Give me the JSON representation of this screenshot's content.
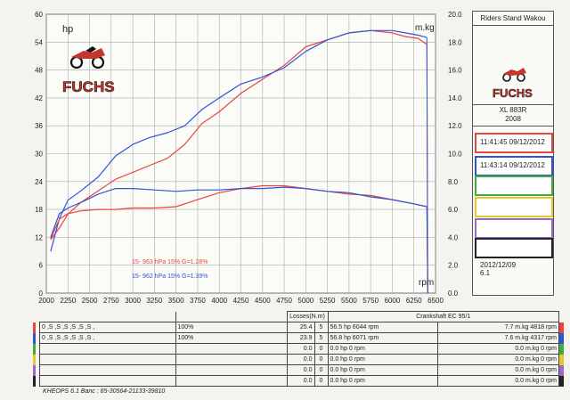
{
  "chart_data": {
    "type": "line",
    "title": "",
    "xlabel": "rpm",
    "ylabel": "hp",
    "y2label": "m.kg",
    "xlim": [
      2000,
      6500
    ],
    "ylim": [
      0,
      60
    ],
    "y2lim": [
      0.0,
      20.0
    ],
    "grid": true,
    "x_ticks": [
      2000,
      2250,
      2500,
      2750,
      3000,
      3250,
      3500,
      3750,
      4000,
      4250,
      4500,
      4750,
      5000,
      5250,
      5500,
      5750,
      6000,
      6250,
      6500
    ],
    "y_ticks": [
      0,
      6,
      12,
      18,
      24,
      30,
      36,
      42,
      48,
      54,
      60
    ],
    "y2_ticks": [
      "0.0",
      "2.0",
      "4.0",
      "6.0",
      "8.0",
      "10.0",
      "12.0",
      "14.0",
      "16.0",
      "18.0",
      "20.0"
    ],
    "annotations": [
      {
        "text": "15-  963 hPa  15%     G=1.28%",
        "color": "#e8453c"
      },
      {
        "text": "15-  962 hPa  15%     G=1.39%",
        "color": "#2f55d4"
      }
    ],
    "series": [
      {
        "name": "11:41:45  09/12/2012",
        "kind": "power",
        "axis": "left",
        "color": "#e8453c",
        "x": [
          2050,
          2150,
          2250,
          2400,
          2600,
          2800,
          3000,
          3200,
          3400,
          3600,
          3800,
          4000,
          4250,
          4500,
          4750,
          5000,
          5250,
          5500,
          5750,
          6000,
          6150,
          6300,
          6400
        ],
        "y": [
          11.5,
          14,
          17,
          19.5,
          22,
          24.5,
          26,
          27.5,
          29,
          32,
          36.5,
          39,
          43,
          46,
          49,
          53,
          54.5,
          56,
          56.5,
          56,
          55.2,
          54.8,
          53.5
        ]
      },
      {
        "name": "11:43:14  09/12/2012",
        "kind": "power",
        "axis": "left",
        "color": "#2f55d4",
        "x": [
          2050,
          2150,
          2250,
          2400,
          2600,
          2800,
          3000,
          3200,
          3400,
          3600,
          3800,
          4000,
          4250,
          4500,
          4750,
          5000,
          5250,
          5500,
          5750,
          6000,
          6150,
          6300,
          6400
        ],
        "y": [
          9,
          16,
          20,
          22,
          25,
          29.5,
          32,
          33.5,
          34.5,
          36,
          39.5,
          42,
          45,
          46.5,
          48.5,
          52,
          54.5,
          56,
          56.5,
          56.5,
          56,
          55.5,
          55
        ]
      },
      {
        "name": "11:41:45  09/12/2012",
        "kind": "torque",
        "axis": "right",
        "color": "#e8453c",
        "x": [
          2050,
          2150,
          2250,
          2400,
          2600,
          2800,
          3000,
          3250,
          3500,
          3750,
          4000,
          4250,
          4500,
          4750,
          5000,
          5250,
          5500,
          5750,
          6000,
          6250,
          6400
        ],
        "y": [
          3.9,
          5.3,
          5.7,
          5.9,
          6.0,
          6.0,
          6.1,
          6.1,
          6.2,
          6.7,
          7.2,
          7.5,
          7.7,
          7.7,
          7.5,
          7.3,
          7.1,
          7.0,
          6.7,
          6.4,
          6.2
        ]
      },
      {
        "name": "11:43:14  09/12/2012",
        "kind": "torque",
        "axis": "right",
        "color": "#2f55d4",
        "x": [
          2050,
          2150,
          2250,
          2400,
          2600,
          2800,
          3000,
          3250,
          3500,
          3750,
          4000,
          4250,
          4500,
          4750,
          5000,
          5250,
          5500,
          5750,
          6000,
          6250,
          6400
        ],
        "y": [
          4.0,
          5.7,
          6.1,
          6.5,
          7.1,
          7.5,
          7.5,
          7.4,
          7.3,
          7.4,
          7.4,
          7.5,
          7.5,
          7.6,
          7.5,
          7.3,
          7.2,
          6.9,
          6.7,
          6.4,
          6.2
        ]
      }
    ]
  },
  "header": {
    "hp_label": "hp",
    "mkg_label": "m.kg",
    "rpm_label": "rpm",
    "logo_text": "FUCHS"
  },
  "panel": {
    "title": "Riders Stand Wakou",
    "logo_text": "FUCHS",
    "model": "XL 883R",
    "year": "2008",
    "slots": [
      {
        "label": "11:41:45  09/12/2012",
        "color": "#e8453c"
      },
      {
        "label": "11:43:14  09/12/2012",
        "color": "#2f55d4"
      },
      {
        "label": "",
        "color": "#3fae3a"
      },
      {
        "label": "",
        "color": "#e8c72a"
      },
      {
        "label": "",
        "color": "#9b67c9"
      },
      {
        "label": "",
        "color": "#222222"
      }
    ],
    "date": "2012/12/09",
    "version": "6.1"
  },
  "table": {
    "losses_label": "Losses(N.m)",
    "crankshaft_label": "Crankshaft EC 95/1",
    "rows": [
      {
        "settings": "0 ,S ,S ,S ,S ,S ,S ,",
        "pct": "100%",
        "loss1": "25.4",
        "loss2": "5",
        "power": "56.5 hp 6044 rpm",
        "torque": "7.7 m.kg 4818 rpm",
        "color": "#e8453c"
      },
      {
        "settings": "0 ,S ,S ,S ,S ,S ,S ,",
        "pct": "100%",
        "loss1": "23.9",
        "loss2": "5",
        "power": "56.8 hp 6071 rpm",
        "torque": "7.6 m.kg 4317 rpm",
        "color": "#2f55d4"
      },
      {
        "settings": "",
        "pct": "",
        "loss1": "0.0",
        "loss2": "0",
        "power": "0.0 hp 0 rpm",
        "torque": "0.0 m.kg 0 rpm",
        "color": "#3fae3a"
      },
      {
        "settings": "",
        "pct": "",
        "loss1": "0.0",
        "loss2": "0",
        "power": "0.0 hp 0 rpm",
        "torque": "0.0 m.kg 0 rpm",
        "color": "#e8c72a"
      },
      {
        "settings": "",
        "pct": "",
        "loss1": "0.0",
        "loss2": "0",
        "power": "0.0 hp 0 rpm",
        "torque": "0.0 m.kg 0 rpm",
        "color": "#9b67c9"
      },
      {
        "settings": "",
        "pct": "",
        "loss1": "0.0",
        "loss2": "0",
        "power": "0.0 hp 0 rpm",
        "torque": "0.0 m.kg 0 rpm",
        "color": "#222222"
      }
    ]
  },
  "footer": "KHEOPS 6.1  Banc : 65-30564-21133-39810"
}
